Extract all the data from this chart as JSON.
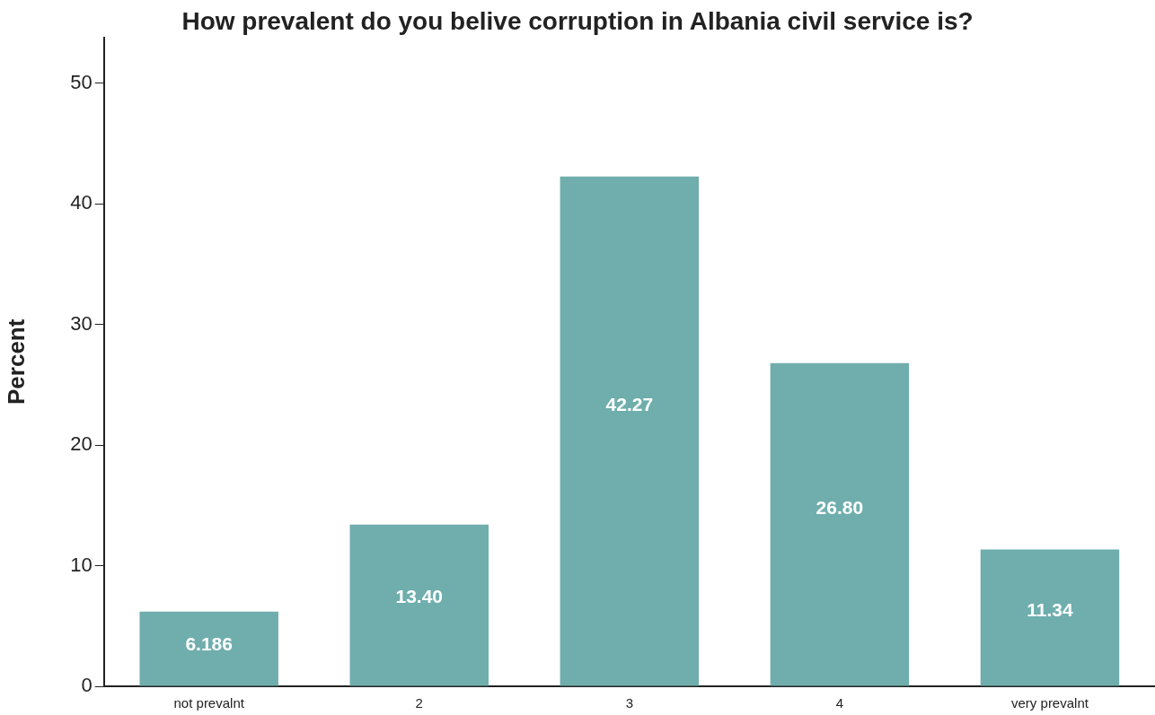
{
  "chart_data": {
    "type": "bar",
    "title": "How prevalent do you belive corruption in Albania civil service is?",
    "ylabel": "Percent",
    "categories": [
      "not prevalnt",
      "2",
      "3",
      "4",
      "very prevalnt"
    ],
    "values": [
      6.186,
      13.4,
      42.27,
      26.8,
      11.34
    ],
    "value_labels": [
      "6.186",
      "13.40",
      "42.27",
      "26.80",
      "11.34"
    ],
    "color": "#6faead",
    "ylim": [
      0,
      53.8
    ],
    "yticks": [
      0,
      10,
      20,
      30,
      40,
      50
    ],
    "grid": false,
    "legend": false
  }
}
